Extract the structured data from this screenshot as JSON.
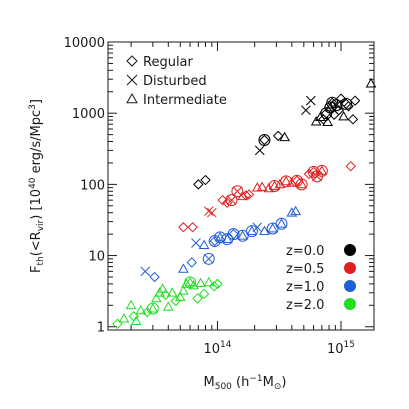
{
  "chart_data": {
    "type": "scatter",
    "xlabel": "M500 (h−1M⊙)",
    "ylabel": "Fth(<Rvir) [10^40 erg/s/Mpc^3]",
    "xlim": [
      13000000000000.0,
      1850000000000000.0
    ],
    "ylim": [
      0.9,
      10000
    ],
    "xscale": "log",
    "yscale": "log",
    "x_ticks": [
      {
        "value": 100000000000000.0,
        "label": "10^14"
      },
      {
        "value": 1000000000000000.0,
        "label": "10^15"
      }
    ],
    "y_ticks": [
      {
        "value": 1,
        "label": "1"
      },
      {
        "value": 10,
        "label": "10"
      },
      {
        "value": 100,
        "label": "100"
      },
      {
        "value": 1000,
        "label": "1000"
      },
      {
        "value": 10000,
        "label": "10000"
      }
    ],
    "marker_legend": [
      {
        "marker": "diamond",
        "label": "Regular"
      },
      {
        "marker": "cross",
        "label": "Disturbed"
      },
      {
        "marker": "triangle",
        "label": "Intermediate"
      }
    ],
    "color_legend": [
      {
        "label": "z=0.0",
        "color": "#000000"
      },
      {
        "label": "z=0.5",
        "color": "#e02020"
      },
      {
        "label": "z=1.0",
        "color": "#1f5fd6"
      },
      {
        "label": "z=2.0",
        "color": "#22dd22"
      }
    ],
    "series": [
      {
        "redshift": "z=0.0",
        "color": "#000000",
        "points": [
          {
            "x": 70000000000000.0,
            "y": 100,
            "marker": "diamond"
          },
          {
            "x": 80000000000000.0,
            "y": 115,
            "marker": "diamond"
          },
          {
            "x": 220000000000000.0,
            "y": 300,
            "marker": "cross"
          },
          {
            "x": 240000000000000.0,
            "y": 420,
            "marker": "circle-diamond"
          },
          {
            "x": 310000000000000.0,
            "y": 480,
            "marker": "diamond"
          },
          {
            "x": 350000000000000.0,
            "y": 460,
            "marker": "triangle"
          },
          {
            "x": 520000000000000.0,
            "y": 1100,
            "marker": "cross"
          },
          {
            "x": 570000000000000.0,
            "y": 1500,
            "marker": "cross"
          },
          {
            "x": 630000000000000.0,
            "y": 760,
            "marker": "triangle"
          },
          {
            "x": 680000000000000.0,
            "y": 880,
            "marker": "triangle"
          },
          {
            "x": 720000000000000.0,
            "y": 820,
            "marker": "diamond"
          },
          {
            "x": 760000000000000.0,
            "y": 1000,
            "marker": "circle-diamond"
          },
          {
            "x": 780000000000000.0,
            "y": 750,
            "marker": "triangle"
          },
          {
            "x": 820000000000000.0,
            "y": 1200,
            "marker": "circle-triangle"
          },
          {
            "x": 850000000000000.0,
            "y": 1400,
            "marker": "circle-diamond"
          },
          {
            "x": 880000000000000.0,
            "y": 950,
            "marker": "diamond"
          },
          {
            "x": 920000000000000.0,
            "y": 1300,
            "marker": "circle-cross"
          },
          {
            "x": 960000000000000.0,
            "y": 1100,
            "marker": "diamond"
          },
          {
            "x": 1000000000000000.0,
            "y": 1600,
            "marker": "diamond"
          },
          {
            "x": 1050000000000000.0,
            "y": 900,
            "marker": "triangle"
          },
          {
            "x": 1100000000000000.0,
            "y": 1350,
            "marker": "circle-diamond"
          },
          {
            "x": 1150000000000000.0,
            "y": 1250,
            "marker": "diamond"
          },
          {
            "x": 1250000000000000.0,
            "y": 820,
            "marker": "diamond"
          },
          {
            "x": 1300000000000000.0,
            "y": 1500,
            "marker": "diamond"
          },
          {
            "x": 1750000000000000.0,
            "y": 2600,
            "marker": "triangle"
          }
        ]
      },
      {
        "redshift": "z=0.5",
        "color": "#e02020",
        "points": [
          {
            "x": 53000000000000.0,
            "y": 25,
            "marker": "diamond"
          },
          {
            "x": 63000000000000.0,
            "y": 25,
            "marker": "diamond"
          },
          {
            "x": 85000000000000.0,
            "y": 42,
            "marker": "cross"
          },
          {
            "x": 90000000000000.0,
            "y": 40,
            "marker": "cross"
          },
          {
            "x": 110000000000000.0,
            "y": 60,
            "marker": "diamond"
          },
          {
            "x": 120000000000000.0,
            "y": 55,
            "marker": "diamond"
          },
          {
            "x": 130000000000000.0,
            "y": 60,
            "marker": "circle-cross"
          },
          {
            "x": 145000000000000.0,
            "y": 80,
            "marker": "circle-cross"
          },
          {
            "x": 160000000000000.0,
            "y": 68,
            "marker": "triangle"
          },
          {
            "x": 170000000000000.0,
            "y": 70,
            "marker": "diamond"
          },
          {
            "x": 180000000000000.0,
            "y": 72,
            "marker": "diamond"
          },
          {
            "x": 210000000000000.0,
            "y": 90,
            "marker": "triangle"
          },
          {
            "x": 230000000000000.0,
            "y": 92,
            "marker": "triangle"
          },
          {
            "x": 260000000000000.0,
            "y": 88,
            "marker": "triangle"
          },
          {
            "x": 290000000000000.0,
            "y": 95,
            "marker": "circle-triangle"
          },
          {
            "x": 320000000000000.0,
            "y": 100,
            "marker": "triangle"
          },
          {
            "x": 360000000000000.0,
            "y": 110,
            "marker": "circle-triangle"
          },
          {
            "x": 400000000000000.0,
            "y": 105,
            "marker": "triangle"
          },
          {
            "x": 440000000000000.0,
            "y": 112,
            "marker": "circle-diamond"
          },
          {
            "x": 480000000000000.0,
            "y": 100,
            "marker": "circle-triangle"
          },
          {
            "x": 550000000000000.0,
            "y": 140,
            "marker": "diamond"
          },
          {
            "x": 600000000000000.0,
            "y": 150,
            "marker": "circle-diamond"
          },
          {
            "x": 640000000000000.0,
            "y": 130,
            "marker": "circle-cross"
          },
          {
            "x": 700000000000000.0,
            "y": 155,
            "marker": "circle-triangle"
          },
          {
            "x": 1200000000000000.0,
            "y": 180,
            "marker": "diamond"
          }
        ]
      },
      {
        "redshift": "z=1.0",
        "color": "#1f5fd6",
        "points": [
          {
            "x": 26000000000000.0,
            "y": 6,
            "marker": "cross"
          },
          {
            "x": 31000000000000.0,
            "y": 5,
            "marker": "diamond"
          },
          {
            "x": 53000000000000.0,
            "y": 6.5,
            "marker": "triangle"
          },
          {
            "x": 62000000000000.0,
            "y": 8,
            "marker": "diamond"
          },
          {
            "x": 67000000000000.0,
            "y": 15,
            "marker": "cross"
          },
          {
            "x": 78000000000000.0,
            "y": 14,
            "marker": "triangle"
          },
          {
            "x": 85000000000000.0,
            "y": 9,
            "marker": "circle-cross"
          },
          {
            "x": 95000000000000.0,
            "y": 16,
            "marker": "circle-diamond"
          },
          {
            "x": 105000000000000.0,
            "y": 18,
            "marker": "circle-triangle"
          },
          {
            "x": 120000000000000.0,
            "y": 17,
            "marker": "circle-triangle"
          },
          {
            "x": 135000000000000.0,
            "y": 20,
            "marker": "circle-diamond"
          },
          {
            "x": 160000000000000.0,
            "y": 19,
            "marker": "circle-triangle"
          },
          {
            "x": 190000000000000.0,
            "y": 22,
            "marker": "circle-triangle"
          },
          {
            "x": 210000000000000.0,
            "y": 25,
            "marker": "cross"
          },
          {
            "x": 240000000000000.0,
            "y": 22,
            "marker": "triangle"
          },
          {
            "x": 280000000000000.0,
            "y": 24,
            "marker": "circle-triangle"
          },
          {
            "x": 330000000000000.0,
            "y": 28,
            "marker": "circle-triangle"
          },
          {
            "x": 400000000000000.0,
            "y": 40,
            "marker": "triangle"
          },
          {
            "x": 430000000000000.0,
            "y": 42,
            "marker": "triangle"
          }
        ]
      },
      {
        "redshift": "z=2.0",
        "color": "#22dd22",
        "points": [
          {
            "x": 15500000000000.0,
            "y": 1.1,
            "marker": "diamond"
          },
          {
            "x": 17500000000000.0,
            "y": 1.3,
            "marker": "triangle"
          },
          {
            "x": 20000000000000.0,
            "y": 2.0,
            "marker": "triangle"
          },
          {
            "x": 21000000000000.0,
            "y": 1.4,
            "marker": "diamond"
          },
          {
            "x": 22000000000000.0,
            "y": 1.2,
            "marker": "triangle"
          },
          {
            "x": 24000000000000.0,
            "y": 1.7,
            "marker": "triangle"
          },
          {
            "x": 27000000000000.0,
            "y": 1.6,
            "marker": "diamond"
          },
          {
            "x": 30000000000000.0,
            "y": 1.8,
            "marker": "circle-triangle"
          },
          {
            "x": 32000000000000.0,
            "y": 2.5,
            "marker": "triangle"
          },
          {
            "x": 34000000000000.0,
            "y": 3.0,
            "marker": "triangle"
          },
          {
            "x": 36000000000000.0,
            "y": 3.4,
            "marker": "triangle"
          },
          {
            "x": 38000000000000.0,
            "y": 2.8,
            "marker": "diamond"
          },
          {
            "x": 40000000000000.0,
            "y": 1.9,
            "marker": "triangle"
          },
          {
            "x": 43000000000000.0,
            "y": 3.0,
            "marker": "triangle"
          },
          {
            "x": 46000000000000.0,
            "y": 2.3,
            "marker": "diamond"
          },
          {
            "x": 50000000000000.0,
            "y": 2.6,
            "marker": "triangle"
          },
          {
            "x": 53000000000000.0,
            "y": 3.2,
            "marker": "triangle"
          },
          {
            "x": 56000000000000.0,
            "y": 4.0,
            "marker": "triangle"
          },
          {
            "x": 60000000000000.0,
            "y": 4.2,
            "marker": "circle-triangle"
          },
          {
            "x": 64000000000000.0,
            "y": 3.8,
            "marker": "triangle"
          },
          {
            "x": 69000000000000.0,
            "y": 2.5,
            "marker": "diamond"
          },
          {
            "x": 73000000000000.0,
            "y": 4.1,
            "marker": "triangle"
          },
          {
            "x": 78000000000000.0,
            "y": 2.9,
            "marker": "diamond"
          },
          {
            "x": 85000000000000.0,
            "y": 4.2,
            "marker": "triangle"
          },
          {
            "x": 94000000000000.0,
            "y": 3.7,
            "marker": "diamond"
          },
          {
            "x": 100000000000000.0,
            "y": 4.0,
            "marker": "diamond"
          }
        ]
      }
    ]
  }
}
